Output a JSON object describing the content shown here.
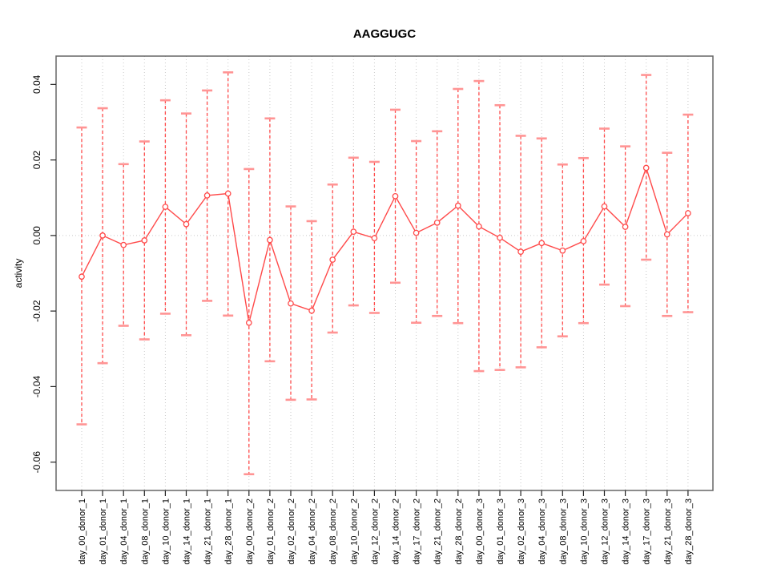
{
  "chart_data": {
    "type": "line",
    "title": "AAGGUGC",
    "xlabel": "",
    "ylabel": "activity",
    "legend": "none",
    "grid": "dotted vertical gridline at each category; dotted horizontal line at y=0",
    "marker": "open-circle",
    "error_bars": true,
    "ylim": [
      -0.0675,
      0.0475
    ],
    "yticks": {
      "values": [
        0.04,
        0.02,
        0.0,
        -0.02,
        -0.04,
        -0.06
      ],
      "labels": [
        "0.04",
        "0.02",
        "0.00",
        "-0.02",
        "-0.04",
        "-0.06"
      ]
    },
    "categories": [
      "day_00_donor_1",
      "day_01_donor_1",
      "day_04_donor_1",
      "day_08_donor_1",
      "day_10_donor_1",
      "day_14_donor_1",
      "day_21_donor_1",
      "day_28_donor_1",
      "day_00_donor_2",
      "day_01_donor_2",
      "day_02_donor_2",
      "day_04_donor_2",
      "day_08_donor_2",
      "day_10_donor_2",
      "day_12_donor_2",
      "day_14_donor_2",
      "day_17_donor_2",
      "day_21_donor_2",
      "day_28_donor_2",
      "day_00_donor_3",
      "day_01_donor_3",
      "day_02_donor_3",
      "day_04_donor_3",
      "day_08_donor_3",
      "day_10_donor_3",
      "day_12_donor_3",
      "day_14_donor_3",
      "day_17_donor_3",
      "day_21_donor_3",
      "day_28_donor_3"
    ],
    "series": [
      {
        "name": "activity",
        "values": [
          -0.0109,
          0.0,
          -0.0025,
          -0.0013,
          0.0076,
          0.003,
          0.0106,
          0.0111,
          -0.0231,
          -0.0012,
          -0.018,
          -0.0199,
          -0.0064,
          0.001,
          -0.0007,
          0.0104,
          0.0007,
          0.0034,
          0.0079,
          0.0024,
          -0.0006,
          -0.0043,
          -0.002,
          -0.004,
          -0.0015,
          0.0077,
          0.0023,
          0.0179,
          0.0003,
          0.0059
        ],
        "upper": [
          0.0286,
          0.0337,
          0.0189,
          0.0249,
          0.0358,
          0.0323,
          0.0384,
          0.0432,
          0.0176,
          0.031,
          0.0077,
          0.0038,
          0.0135,
          0.0206,
          0.0195,
          0.0333,
          0.025,
          0.0276,
          0.0388,
          0.0409,
          0.0345,
          0.0264,
          0.0257,
          0.0188,
          0.0205,
          0.0283,
          0.0236,
          0.0425,
          0.0219,
          0.032
        ],
        "lower": [
          -0.05,
          -0.0338,
          -0.0239,
          -0.0275,
          -0.0207,
          -0.0264,
          -0.0173,
          -0.0212,
          -0.0632,
          -0.0333,
          -0.0435,
          -0.0434,
          -0.0257,
          -0.0185,
          -0.0205,
          -0.0125,
          -0.0231,
          -0.0213,
          -0.0232,
          -0.0359,
          -0.0356,
          -0.0349,
          -0.0296,
          -0.0267,
          -0.0232,
          -0.013,
          -0.0187,
          -0.0064,
          -0.0213,
          -0.0203
        ]
      }
    ],
    "colors": {
      "series": "#ff4a4a",
      "error_cap": "#ff9494",
      "grid": "#c9c9c9",
      "box": "#666666",
      "tick": "#222222",
      "text": "#000000",
      "background": "#ffffff"
    }
  }
}
